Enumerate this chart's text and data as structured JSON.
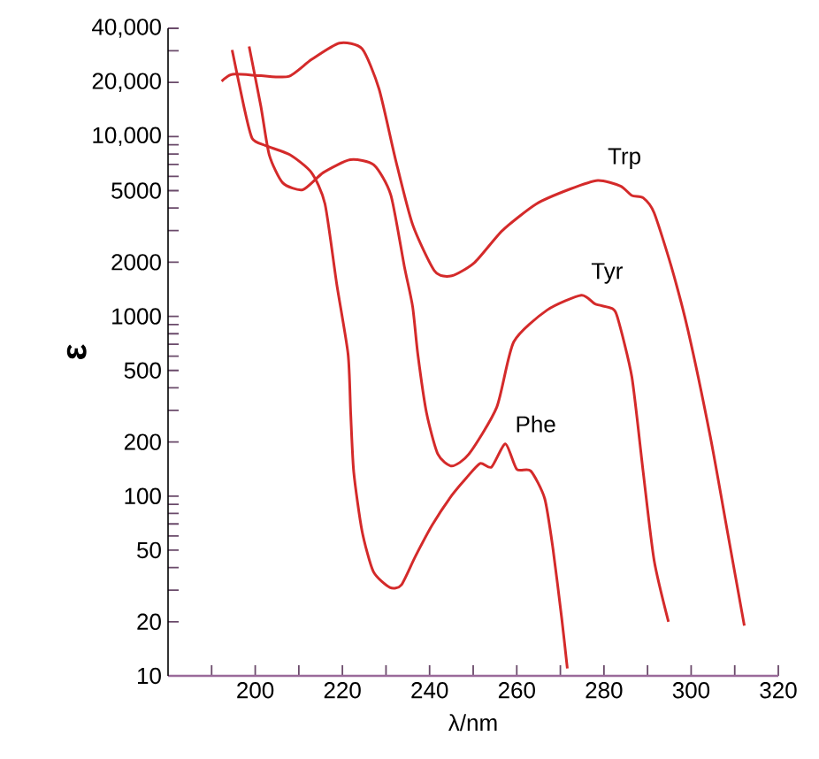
{
  "chart_data": {
    "type": "line",
    "xlabel": "λ/nm",
    "ylabel": "ε",
    "log": "y",
    "line_style": "solid",
    "xlim": [
      180,
      320
    ],
    "ylim": [
      10,
      40000
    ],
    "xticks": [
      {
        "value": 190,
        "label": null
      },
      200,
      {
        "value": 210,
        "label": null
      },
      220,
      {
        "value": 230,
        "label": null
      },
      240,
      {
        "value": 250,
        "label": null
      },
      260,
      {
        "value": 270,
        "label": null
      },
      280,
      {
        "value": 290,
        "label": null
      },
      300,
      {
        "value": 310,
        "label": null
      },
      320
    ],
    "yticks": [
      10,
      20,
      {
        "value": 30,
        "label": null
      },
      {
        "value": 40,
        "label": null
      },
      50,
      {
        "value": 60,
        "label": null
      },
      {
        "value": 70,
        "label": null
      },
      {
        "value": 80,
        "label": null
      },
      {
        "value": 90,
        "label": null
      },
      100,
      200,
      {
        "value": 300,
        "label": null
      },
      {
        "value": 400,
        "label": null
      },
      500,
      {
        "value": 600,
        "label": null
      },
      {
        "value": 700,
        "label": null
      },
      {
        "value": 800,
        "label": null
      },
      {
        "value": 900,
        "label": null
      },
      1000,
      2000,
      {
        "value": 3000,
        "label": null
      },
      {
        "value": 4000,
        "label": null
      },
      5000,
      {
        "value": 6000,
        "label": null
      },
      {
        "value": 7000,
        "label": null
      },
      {
        "value": 8000,
        "label": null
      },
      {
        "value": 9000,
        "label": null
      },
      {
        "value": 10000,
        "label": "10,000"
      },
      {
        "value": 20000,
        "label": "20,000"
      },
      {
        "value": 30000,
        "label": null
      },
      {
        "value": 40000,
        "label": "40,000"
      }
    ],
    "series": [
      {
        "name": "Trp",
        "color": "#d42a2a",
        "x": [
          192.3,
          194.8,
          201.3,
          207.7,
          212.9,
          219.3,
          224.5,
          228.4,
          232.2,
          236.1,
          241.2,
          245.1,
          250.3,
          256.7,
          264.5,
          272.2,
          278.6,
          283.8,
          286.4,
          289,
          291.5,
          295.4,
          299.3,
          304.4,
          308.3,
          312.2
        ],
        "values": [
          20300,
          22200,
          21800,
          21600,
          26800,
          33100,
          30800,
          18400,
          7430,
          3240,
          1780,
          1680,
          1990,
          3000,
          4220,
          5100,
          5700,
          5300,
          4700,
          4560,
          3770,
          1910,
          832,
          214,
          64,
          19
        ]
      },
      {
        "name": "Tyr",
        "color": "#d42a2a",
        "x": [
          198.6,
          201.3,
          203.2,
          206.3,
          210.9,
          215.6,
          221.8,
          227.2,
          231.1,
          234.2,
          236.1,
          237.3,
          239.3,
          241.9,
          245.1,
          249,
          255.4,
          259.3,
          267,
          274.8,
          278,
          281.9,
          283.2,
          286.4,
          289,
          291.5,
          294.8
        ],
        "values": [
          31700,
          14700,
          7930,
          5530,
          5060,
          6300,
          7430,
          6950,
          4730,
          1900,
          1135,
          615,
          290,
          171,
          147,
          171,
          312,
          721,
          1085,
          1310,
          1170,
          1105,
          968,
          460,
          136,
          44,
          20
        ]
      },
      {
        "name": "Phe",
        "color": "#d42a2a",
        "x": [
          194.7,
          197.4,
          199.3,
          202.4,
          207.9,
          212.9,
          216,
          218.7,
          221.3,
          221.9,
          222.6,
          224.5,
          227.1,
          230.9,
          233.5,
          236.7,
          240.6,
          245.1,
          248.4,
          251.6,
          254.2,
          257.4,
          260,
          263.2,
          266.4,
          268.3,
          270.3,
          271.6
        ],
        "values": [
          30300,
          14700,
          9770,
          8900,
          7930,
          6300,
          4220,
          1510,
          615,
          288,
          136,
          64,
          38,
          31,
          32,
          46,
          69,
          101,
          126,
          152,
          145,
          195,
          141,
          138,
          97,
          51,
          21,
          11
        ]
      }
    ]
  }
}
